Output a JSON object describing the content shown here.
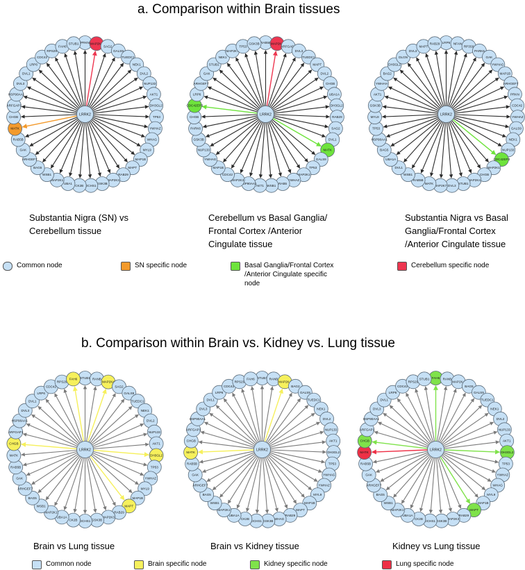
{
  "colors": {
    "common": "#c6e0f5",
    "sn": "#f39a2c",
    "basal": "#6ee33c",
    "cerebellum": "#ee3650",
    "brain": "#f6f05c",
    "kidney": "#7fe24a",
    "lung": "#ee3046",
    "edge_dark": "#2b2b2b",
    "edge_grey": "#7a7a7a"
  },
  "section_a": {
    "title": "a.  Comparison within Brain tissues",
    "panels": [
      {
        "id": "a1",
        "center": "LRRK2",
        "caption": "Substantia Nigra (SN) vs\nCerebellum tissue",
        "edge_style": "dark",
        "nodes": [
          "PRKN",
          "MAP2K4",
          "SAG2",
          "GALS9",
          "TUEDC1",
          "NEK1",
          "DVL2",
          "NUP133",
          "AKT1",
          "DH3GL2",
          "TP53",
          "YWHAZ",
          "WHAG",
          "MYL9",
          "MAP1B",
          "MAPT",
          "RAB29",
          "MAP2K3",
          "GSK3B",
          "DCHS1",
          "CK2B",
          "UBA1",
          "MAP2K1",
          "WSB1",
          "BAG5",
          "ARHGEF7",
          "GAK",
          "RAB5B",
          "MATK",
          "CHGB",
          "ARFGAP1",
          "HSP90AA1",
          "DVL3",
          "DVL1",
          "LRP6",
          "CDC42",
          "RPS29",
          "FAH6",
          "STUB1"
        ],
        "highlights": {
          "MAP2K4": "cerebellum",
          "MATK": "sn"
        }
      },
      {
        "id": "a2",
        "center": "LRRK2",
        "caption": "Cerebellum vs Basal Ganglia/\nFrontal Cortex /Anterior\nCingulate  tissue",
        "edge_style": "dark",
        "nodes": [
          "RAB5B",
          "MAP2K4",
          "ARFGAP1",
          "DVL3",
          "TUEDC1",
          "MAPT",
          "DVL2",
          "CHGB",
          "UBA1A",
          "DH3GL2",
          "RAB29",
          "SAG2",
          "DVL1",
          "MATK",
          "GALS9",
          "TP53",
          "MAP2K1",
          "YWHAZ",
          "RAB5",
          "WSB1",
          "AKT1",
          "HSP90AA1",
          "MAP2K3",
          "CDC42",
          "MAP1B",
          "YWHAG",
          "NUP133",
          "GSK3B",
          "PARK6",
          "CHGB",
          "CDC42EP3",
          "LRP6",
          "ARHGEF7",
          "GAK",
          "STUB1",
          "NEK1",
          "MAP2K7",
          "TP53",
          "GSK3B"
        ],
        "highlights": {
          "MAP2K4": "cerebellum",
          "CDC42EP3": "basal",
          "MATK": "basal"
        }
      },
      {
        "id": "a3",
        "center": "LRRK2",
        "caption": "Substantia Nigra vs Basal\nGanglia/Frontal  Cortex\n/Anterior Cingulate  tissue",
        "edge_style": "dark",
        "nodes": [
          "LRP6",
          "NFAN",
          "RP3S9",
          "PARK6",
          "GAK",
          "YWHAG",
          "MAP1B",
          "ARHGEF7",
          "PRKN",
          "CDC42",
          "YWHAZ",
          "GALS9",
          "NEK1",
          "NUP133",
          "CDC42EP3",
          "MAP2K1",
          "CHGB",
          "MAP2K4",
          "STUB1",
          "DVL3",
          "MAP2K7",
          "MATK",
          "RAB5B",
          "WSB1",
          "DVL1",
          "UBA1A",
          "BAG5",
          "HSP90AA1",
          "TP53",
          "MYL9",
          "GSK3B",
          "AKT1",
          "YWHAH",
          "BAG2",
          "DH3GL2",
          "DLGN",
          "DVL3",
          "MAPT",
          "RAB29"
        ],
        "highlights": {
          "CDC42EP3": "basal"
        }
      }
    ],
    "legend": [
      {
        "label": "Common node",
        "color_key": "common"
      },
      {
        "label": "SN specific node",
        "color_key": "sn"
      },
      {
        "label": "Basal Ganglia/Frontal  Cortex\n/Anterior Cingulate specific\nnode",
        "color_key": "basal"
      },
      {
        "label": "Cerebellum specific node",
        "color_key": "cerebellum"
      }
    ]
  },
  "section_b": {
    "title": "b.  Comparison within Brain vs. Kidney vs. Lung tissue",
    "panels": [
      {
        "id": "b1",
        "center": "LRRK2",
        "caption": "Brain vs Lung tissue",
        "edge_style": "grey",
        "nodes": [
          "STUB1",
          "RANB",
          "MAP2K4",
          "SAG2",
          "GALS9",
          "TUEDC1",
          "NEK1",
          "DVL2",
          "NUP133",
          "AKT1",
          "DH3GL2",
          "TP53",
          "YWHAZ",
          "MYL9",
          "MAP1B",
          "MAPT",
          "RAB29",
          "MAP2K3",
          "GSK3B",
          "DCHS1",
          "CK2B",
          "UBA1A",
          "MAP2K1",
          "WSB1",
          "BAG5",
          "ARHGEF7",
          "GAK",
          "RAB5B",
          "MATK",
          "CHGB",
          "ARFGAP1",
          "HSP90AA1",
          "DVL3",
          "DVL1",
          "LRP6",
          "CDC42",
          "RPS29",
          "FAH6"
        ],
        "highlights": {
          "MAP2K4": "brain",
          "FAH6": "brain",
          "DH3GL2": "brain",
          "CHGB": "brain",
          "MAPT": "brain"
        }
      },
      {
        "id": "b2",
        "center": "LRRK2",
        "caption": "Brain vs Kidney tissue",
        "edge_style": "grey",
        "nodes": [
          "STUB1",
          "RANB",
          "MAP2K4",
          "BAG2",
          "GALS9",
          "TUEDC1",
          "NEK1",
          "DVL2",
          "NUP133",
          "AKT1",
          "DH3GL2",
          "TP53",
          "YWHAG",
          "YWHAZ",
          "MYL9",
          "MAP1B",
          "MAPT",
          "RAB29",
          "WHAG",
          "GSK3B",
          "DCHS1",
          "CK2B",
          "UBA1A",
          "MAP2K1",
          "WSB1",
          "BAG5",
          "ARHGEF7",
          "GAK",
          "RAB5B",
          "MATK",
          "CHGB",
          "ARFGAP1",
          "HSP90AA1",
          "DVL3",
          "DVL1",
          "LRP6",
          "CDC42",
          "RPS29",
          "FAH6"
        ],
        "highlights": {
          "MAP2K4": "brain",
          "MATK": "brain"
        }
      },
      {
        "id": "b3",
        "center": "LRRK2",
        "caption": "Kidney vs Lung tissue",
        "edge_style": "grey",
        "nodes": [
          "FAH6",
          "RANB",
          "MAP2K4",
          "BAG5",
          "GALS9",
          "TUEDC1",
          "NEK1",
          "DVL2",
          "NUP133",
          "AKT1",
          "DH3GL2",
          "TP53",
          "YWHAZ",
          "WHAG",
          "MYL9",
          "MAP1B",
          "MAPT",
          "RAB29",
          "MAP2K3",
          "GSK3B",
          "DCHS1",
          "CK2B",
          "UBA1A",
          "MAP2K1",
          "WSB1",
          "BAG5",
          "ARHGEF7",
          "GAK",
          "RAB5B",
          "MATK",
          "CHGB",
          "ARFGAP1",
          "HSP90AA1",
          "DVL3",
          "DVL1",
          "LRP6",
          "CDC42",
          "RPS29",
          "STUB1"
        ],
        "highlights": {
          "FAH6": "kidney",
          "CHGB": "kidney",
          "DH3GL2": "kidney",
          "MAPT": "kidney",
          "MATK": "lung"
        }
      }
    ],
    "legend": [
      {
        "label": "Common node",
        "color_key": "common"
      },
      {
        "label": "Brain specific node",
        "color_key": "brain"
      },
      {
        "label": "Kidney specific node",
        "color_key": "kidney"
      },
      {
        "label": "Lung specific node",
        "color_key": "lung"
      }
    ]
  }
}
